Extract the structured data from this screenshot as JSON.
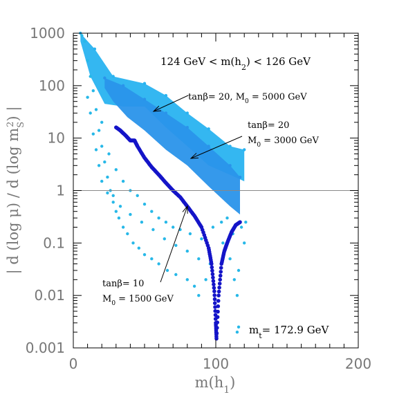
{
  "chart_data": {
    "type": "scatter",
    "title": "",
    "xlabel": "m(h",
    "xlabel_sub": "1",
    "xlabel_end": ")",
    "ylabel": "| d (log μ) / d (log m",
    "ylabel_sub": "S",
    "ylabel_sup": "2",
    "ylabel_end": ") |",
    "xlim": [
      0,
      200
    ],
    "ylim": [
      0.001,
      1000
    ],
    "yscale": "log",
    "x_ticks": [
      0,
      100,
      200
    ],
    "x_tick_labels": [
      "0",
      "100",
      "200"
    ],
    "y_ticks": [
      0.001,
      0.01,
      0.1,
      1,
      10,
      100,
      1000
    ],
    "y_tick_labels": [
      "0.001",
      "0.01",
      "0.1",
      "1",
      "10",
      "100",
      "1000"
    ],
    "reference_line_y": 1,
    "colors": {
      "tan20_m5000": "#29b3f0",
      "tan20_m3000": "#2a93ea",
      "tan10_m1500": "#1414c8",
      "scatter_light": "#27b8e8"
    },
    "series": [
      {
        "name": "tanβ= 20, M0 = 5000 GeV",
        "kind": "band",
        "color": "#29b3f0",
        "upper": [
          [
            5,
            1000
          ],
          [
            15,
            500
          ],
          [
            28,
            150
          ],
          [
            50,
            110
          ],
          [
            65,
            65
          ],
          [
            80,
            30
          ],
          [
            95,
            15
          ],
          [
            110,
            7
          ],
          [
            120,
            6
          ]
        ],
        "lower": [
          [
            120,
            1.5
          ],
          [
            110,
            2
          ],
          [
            95,
            3
          ],
          [
            80,
            7
          ],
          [
            65,
            16
          ],
          [
            50,
            40
          ],
          [
            35,
            40
          ],
          [
            22,
            45
          ],
          [
            12,
            150
          ],
          [
            5,
            700
          ]
        ]
      },
      {
        "name": "tanβ= 20 M0 = 3000 GeV",
        "kind": "band",
        "color": "#2a93ea",
        "upper": [
          [
            22,
            140
          ],
          [
            35,
            100
          ],
          [
            50,
            55
          ],
          [
            65,
            30
          ],
          [
            80,
            16
          ],
          [
            95,
            7
          ],
          [
            110,
            3
          ],
          [
            117,
            1.8
          ]
        ],
        "lower": [
          [
            117,
            0.35
          ],
          [
            110,
            0.5
          ],
          [
            95,
            1.2
          ],
          [
            80,
            3
          ],
          [
            65,
            6
          ],
          [
            50,
            14
          ],
          [
            38,
            25
          ],
          [
            28,
            50
          ],
          [
            22,
            90
          ]
        ]
      },
      {
        "name": "tanβ= 10 M0 = 1500 GeV",
        "kind": "curve",
        "color": "#1414c8",
        "points": [
          [
            30,
            16
          ],
          [
            33,
            14
          ],
          [
            37,
            11
          ],
          [
            40,
            9
          ],
          [
            43,
            9
          ],
          [
            45,
            7
          ],
          [
            50,
            4.2
          ],
          [
            55,
            2.8
          ],
          [
            60,
            2.0
          ],
          [
            65,
            1.4
          ],
          [
            70,
            1.0
          ],
          [
            75,
            0.75
          ],
          [
            80,
            0.5
          ],
          [
            85,
            0.33
          ],
          [
            90,
            0.2
          ],
          [
            95,
            0.08
          ],
          [
            97,
            0.04
          ],
          [
            99,
            0.012
          ],
          [
            100,
            0.003
          ],
          [
            100.5,
            0.0015
          ],
          [
            102,
            0.01
          ],
          [
            104,
            0.04
          ],
          [
            106,
            0.07
          ],
          [
            108,
            0.1
          ],
          [
            111,
            0.16
          ],
          [
            114,
            0.22
          ],
          [
            117,
            0.25
          ]
        ]
      },
      {
        "name": "",
        "kind": "scatter",
        "color": "#27b8e8",
        "points": [
          [
            6,
            900
          ],
          [
            8,
            700
          ],
          [
            10,
            300
          ],
          [
            12,
            150
          ],
          [
            14,
            80
          ],
          [
            16,
            35
          ],
          [
            18,
            14
          ],
          [
            20,
            7
          ],
          [
            22,
            3.5
          ],
          [
            24,
            1.8
          ],
          [
            26,
            1.0
          ],
          [
            28,
            0.6
          ],
          [
            30,
            0.4
          ],
          [
            32,
            0.3
          ],
          [
            35,
            0.2
          ],
          [
            38,
            0.15
          ],
          [
            42,
            0.1
          ],
          [
            46,
            0.08
          ],
          [
            50,
            0.06
          ],
          [
            55,
            0.05
          ],
          [
            60,
            0.04
          ],
          [
            66,
            0.03
          ],
          [
            72,
            0.025
          ],
          [
            80,
            0.02
          ],
          [
            85,
            0.015
          ],
          [
            88,
            0.01
          ],
          [
            93,
            0.02
          ],
          [
            105,
            0.1
          ],
          [
            110,
            0.05
          ],
          [
            113,
            0.02
          ],
          [
            115,
            0.01
          ],
          [
            118,
            0.2
          ],
          [
            120,
            0.1
          ],
          [
            121,
            0.25
          ],
          [
            116,
            0.03
          ],
          [
            112,
            0.15
          ],
          [
            108,
            0.3
          ],
          [
            104,
            0.25
          ],
          [
            12,
            30
          ],
          [
            14,
            12
          ],
          [
            16,
            6
          ],
          [
            18,
            3
          ],
          [
            20,
            1.5
          ],
          [
            24,
            0.9
          ],
          [
            28,
            0.8
          ],
          [
            33,
            0.5
          ],
          [
            40,
            0.35
          ],
          [
            48,
            0.25
          ],
          [
            56,
            0.18
          ],
          [
            64,
            0.12
          ],
          [
            72,
            0.09
          ],
          [
            80,
            0.07
          ],
          [
            88,
            0.05
          ],
          [
            96,
            0.04
          ],
          [
            10,
            60
          ],
          [
            20,
            20
          ],
          [
            25,
            5
          ],
          [
            30,
            2.5
          ],
          [
            35,
            1.5
          ],
          [
            40,
            1.0
          ],
          [
            45,
            0.8
          ],
          [
            50,
            0.55
          ],
          [
            55,
            0.4
          ],
          [
            60,
            0.3
          ],
          [
            65,
            0.25
          ],
          [
            70,
            0.2
          ],
          [
            75,
            0.18
          ],
          [
            82,
            0.15
          ],
          [
            90,
            0.12
          ],
          [
            98,
            0.2
          ],
          [
            115,
            0.002
          ],
          [
            116,
            0.0025
          ]
        ]
      }
    ],
    "annotations": [
      {
        "text": "124 GeV < m(h",
        "sub": "2",
        "end": ") < 126 GeV"
      },
      {
        "text": "tanβ= 20, M",
        "sub": "0",
        "end": " = 5000 GeV"
      },
      {
        "text": "tanβ= 20"
      },
      {
        "text": "M",
        "sub": "0",
        "end": " = 3000 GeV"
      },
      {
        "text": "tanβ= 10"
      },
      {
        "text": "M",
        "sub": "0",
        "end": " = 1500 GeV"
      },
      {
        "text": "m",
        "sub": "t",
        "end": "= 172.9 GeV"
      }
    ]
  }
}
